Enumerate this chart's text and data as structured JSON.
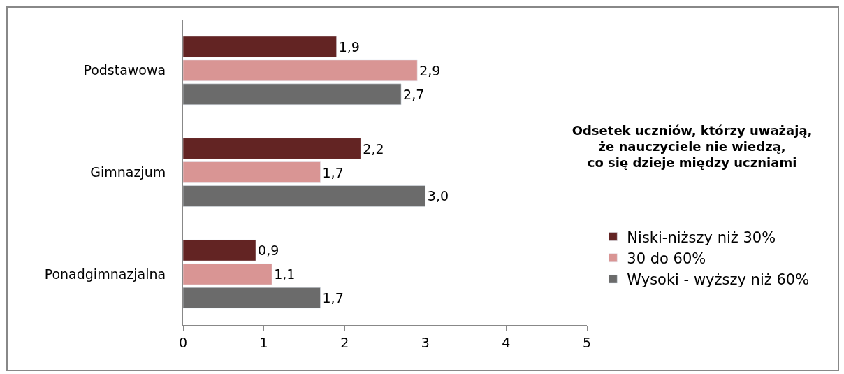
{
  "chart_data": {
    "type": "bar",
    "orientation": "horizontal",
    "title": "Odsetek uczniów, którzy uważają,\nże nauczyciele nie wiedzą,\nco się dzieje między uczniami",
    "categories": [
      "Podstawowa",
      "Gimnazjum",
      "Ponadgimnazjalna"
    ],
    "series": [
      {
        "name": "Niski-niższy niż 30%",
        "color": "#632423",
        "values": [
          1.9,
          2.2,
          0.9
        ],
        "value_labels": [
          "1,9",
          "2,2",
          "0,9"
        ]
      },
      {
        "name": "30 do 60%",
        "color": "#d99594",
        "values": [
          2.9,
          1.7,
          1.1
        ],
        "value_labels": [
          "2,9",
          "1,7",
          "1,1"
        ]
      },
      {
        "name": "Wysoki - wyższy niż 60%",
        "color": "#6b6b6b",
        "values": [
          2.7,
          3.0,
          1.7
        ],
        "value_labels": [
          "2,7",
          "3,0",
          "1,7"
        ]
      }
    ],
    "xlim": [
      0,
      5
    ],
    "xticks": [
      0,
      1,
      2,
      3,
      4,
      5
    ],
    "legend": "right"
  }
}
